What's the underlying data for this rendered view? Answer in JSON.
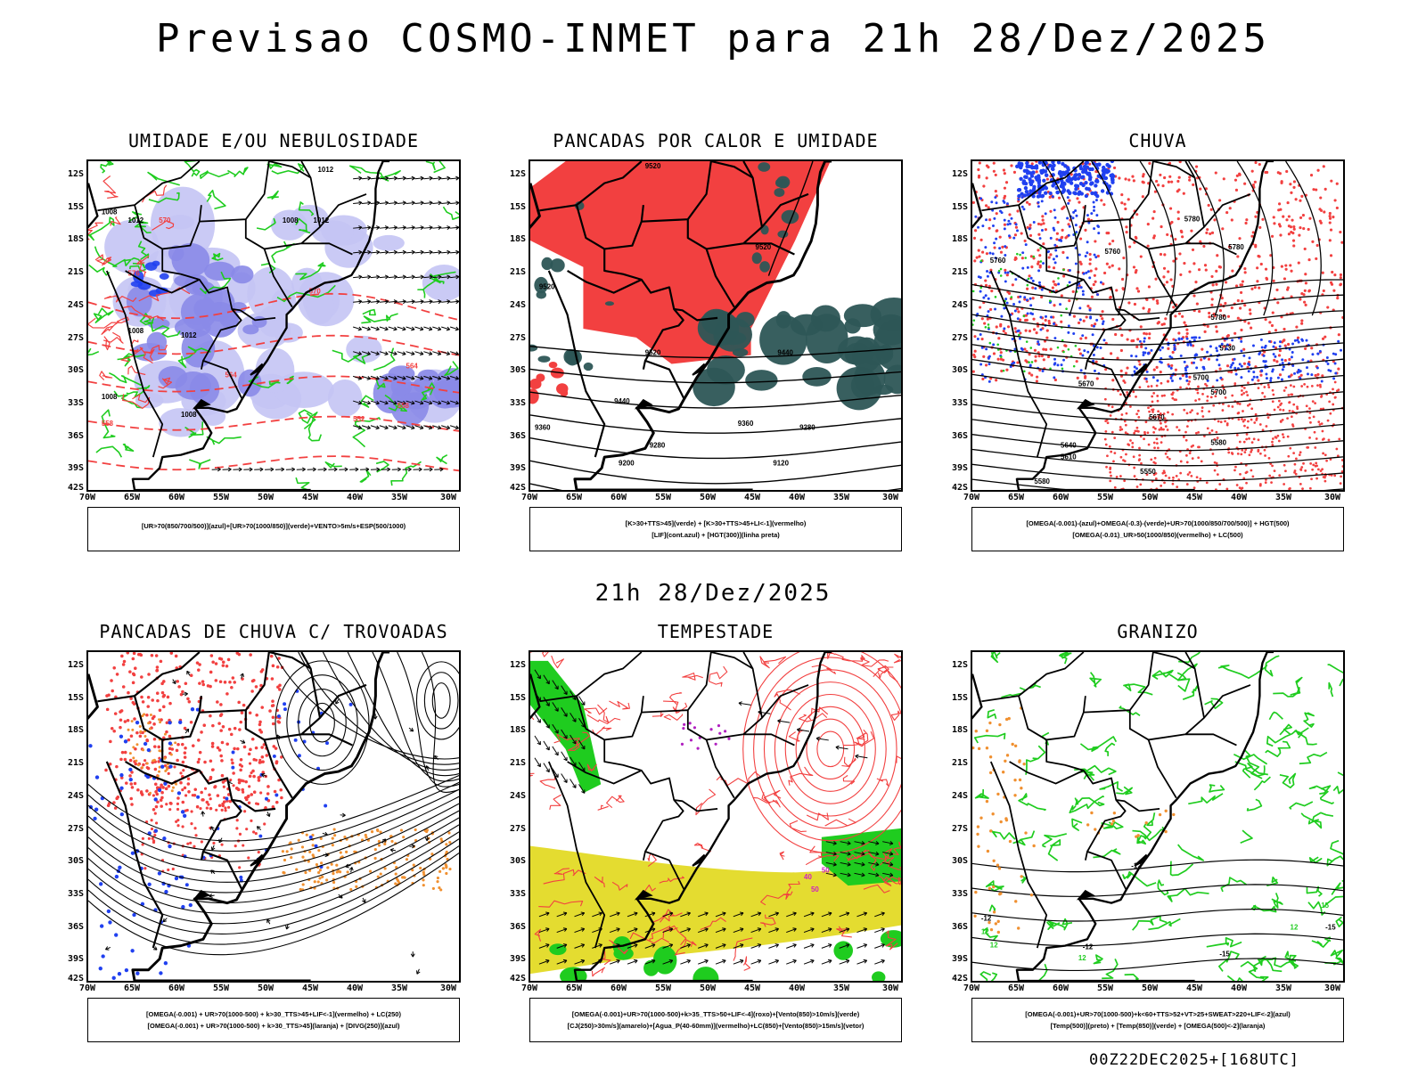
{
  "main_title": "Previsao COSMO-INMET  para 21h 28/Dez/2025",
  "mid_title": "21h 28/Dez/2025",
  "footer": "00Z22DEC2025+[168UTC]",
  "lat_ticks": [
    "12S",
    "15S",
    "18S",
    "21S",
    "24S",
    "27S",
    "30S",
    "33S",
    "36S",
    "39S",
    "42S"
  ],
  "lon_ticks": [
    "70W",
    "65W",
    "60W",
    "55W",
    "50W",
    "45W",
    "40W",
    "35W",
    "30W"
  ],
  "panels": [
    {
      "title": "UMIDADE E/OU NEBULOSIDADE",
      "legend_lines": [
        "[UR>70(850/700/500)](azul)+[UR>70(1000/850)](verde)+VENTO>5m/s+ESP(500/1000)"
      ],
      "contour_labels": [
        "1012",
        "1008",
        "1012",
        "1008",
        "1012",
        "1008",
        "1012",
        "1008",
        "1008"
      ],
      "red_labels": [
        "570",
        "564",
        "558",
        "552",
        "576",
        "570",
        "564",
        "558"
      ]
    },
    {
      "title": "PANCADAS POR CALOR E UMIDADE",
      "legend_lines": [
        "[K>30+TTS>45](verde) + [K>30+TTS>45+LI<-1](vermelho)",
        "[LIF](cont.azul) + [HGT(300)](linha preta)"
      ],
      "contour_labels": [
        "9520",
        "9520",
        "9520",
        "9520",
        "9440",
        "9440",
        "9360",
        "9360",
        "9280",
        "9280",
        "9200",
        "9120"
      ],
      "red_labels": []
    },
    {
      "title": "CHUVA",
      "legend_lines": [
        "[OMEGA(-0.001)-(azul)+OMEGA(-0.3)-(verde)+UR>70(1000/850/700/500)] + HGT(500)",
        "[OMEGA(-0.01)_UR>50(1000/850)(vermelho) + LC(500)"
      ],
      "contour_labels": [
        "5780",
        "5780",
        "5760",
        "5760",
        "5780",
        "5730",
        "5700",
        "5700",
        "5670",
        "5670",
        "5640",
        "5610",
        "5580",
        "5550",
        "5580"
      ],
      "red_labels": []
    },
    {
      "title": "PANCADAS DE CHUVA C/ TROVOADAS",
      "legend_lines": [
        "[OMEGA(-0.001) + UR>70(1000-500) + k>30_TTS>45+LIF<-1](vermelho) + LC(250)",
        "[OMEGA(-0.001) + UR>70(1000-500) + k>30_TTS>45](laranja) + [DIVG(250)](azul)"
      ],
      "contour_labels": [],
      "red_labels": []
    },
    {
      "title": "TEMPESTADE",
      "legend_lines": [
        "[OMEGA(-0.001)+UR>70(1000-500)+k>35_TTS>50+LIF<-4](roxo)+[Vento(850)>10m/s](verde)",
        "[CJ(250)>30m/s](amarelo)+[Agua_P(40-60mm)](vermelho)+LC(850)+[Vento(850)>15m/s](vetor)"
      ],
      "contour_labels": [],
      "red_labels": [
        "40",
        "50",
        "50"
      ]
    },
    {
      "title": "GRANIZO",
      "legend_lines": [
        "[OMEGA(-0.001)+UR>70(1000-500)+k<60+TTS>52+VT>25+SWEAT>220+LIF<-2](azul)",
        "[Temp(500)](preto) + [Temp(850)](verde) + [OMEGA(500)<-2](laranja)"
      ],
      "contour_labels": [
        "-12",
        "-12",
        "-12",
        "-15",
        "-15"
      ],
      "red_labels": [
        "12",
        "12",
        "12",
        "15",
        "12"
      ]
    }
  ],
  "colors": {
    "red": "#f24040",
    "green": "#1fcc1f",
    "blue": "#2040f0",
    "light_blue": "#c4c4f4",
    "mid_blue": "#8a8ae8",
    "dark_teal": "#2d5656",
    "yellow": "#e4dc30",
    "orange": "#f09030",
    "black": "#000000"
  }
}
